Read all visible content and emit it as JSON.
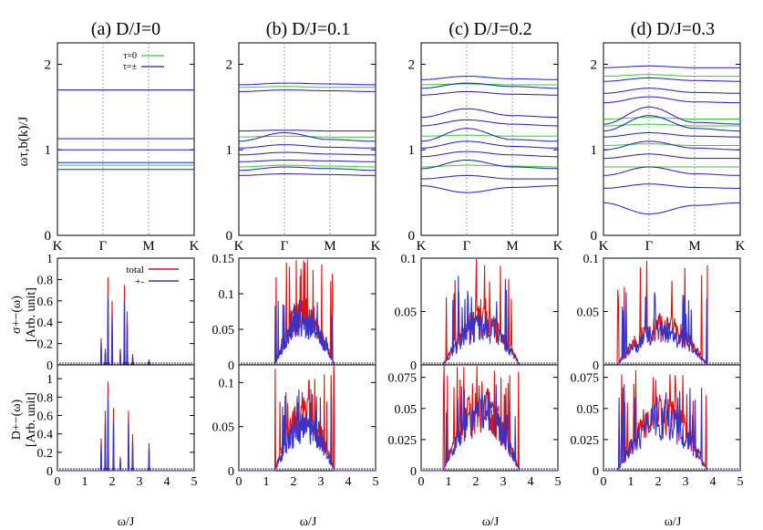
{
  "colors": {
    "tau0": "#33cc33",
    "taupm": "#1a1acc",
    "total": "#e01010",
    "pm": "#3333cc",
    "axis": "#000000",
    "guide": "#888888"
  },
  "labels": {
    "omega_ylabel": "ωτ,b(k)/J",
    "sigma_ylabel_1": "σ+−(ω)",
    "sigma_ylabel_2": "[Arb. unit]",
    "d_ylabel_1": "D+−(ω)",
    "d_ylabel_2": "[Arb. unit]",
    "xlabel": "ω/J",
    "legend_top": [
      "τ=0",
      "τ=±"
    ],
    "legend_mid": [
      "total",
      "+-"
    ]
  },
  "chart_data": [
    {
      "type": "line",
      "panel": "dispersion",
      "title": "(a) D/J=0",
      "x_ticks": [
        "K",
        "Γ",
        "M",
        "K"
      ],
      "ylim": [
        0,
        2.25
      ],
      "y_ticks": [
        "0",
        "1",
        "2"
      ],
      "series": [
        {
          "name": "τ=0",
          "bands": [
            [
              0.82,
              0.82,
              0.82,
              0.82
            ],
            [
              1.13,
              1.13,
              1.13,
              1.13
            ],
            [
              1.7,
              1.7,
              1.7,
              1.7
            ]
          ]
        },
        {
          "name": "τ=±",
          "bands": [
            [
              0.77,
              0.77,
              0.77,
              0.77
            ],
            [
              0.85,
              0.85,
              0.85,
              0.85
            ],
            [
              1.0,
              1.0,
              1.0,
              1.0
            ],
            [
              1.13,
              1.13,
              1.13,
              1.13
            ],
            [
              1.7,
              1.7,
              1.7,
              1.7
            ]
          ]
        }
      ]
    },
    {
      "type": "line",
      "panel": "dispersion",
      "title": "(b) D/J=0.1",
      "x_ticks": [
        "K",
        "Γ",
        "M",
        "K"
      ],
      "ylim": [
        0,
        2.25
      ],
      "y_ticks": [
        "0",
        "1",
        "2"
      ],
      "series": [
        {
          "name": "τ=0",
          "bands": [
            [
              0.8,
              0.82,
              0.81,
              0.8
            ],
            [
              1.15,
              1.16,
              1.15,
              1.15
            ],
            [
              1.73,
              1.74,
              1.73,
              1.73
            ]
          ]
        },
        {
          "name": "τ=±",
          "bands": [
            [
              0.7,
              0.72,
              0.71,
              0.7
            ],
            [
              0.76,
              0.8,
              0.78,
              0.76
            ],
            [
              0.86,
              0.88,
              0.87,
              0.86
            ],
            [
              0.94,
              0.97,
              0.95,
              0.94
            ],
            [
              1.02,
              1.06,
              1.03,
              1.02
            ],
            [
              1.1,
              1.2,
              1.12,
              1.1
            ],
            [
              1.22,
              1.23,
              1.22,
              1.22
            ],
            [
              1.68,
              1.7,
              1.69,
              1.68
            ],
            [
              1.76,
              1.78,
              1.77,
              1.76
            ]
          ]
        }
      ]
    },
    {
      "type": "line",
      "panel": "dispersion",
      "title": "(c) D/J=0.2",
      "x_ticks": [
        "K",
        "Γ",
        "M",
        "K"
      ],
      "ylim": [
        0,
        2.25
      ],
      "y_ticks": [
        "0",
        "1",
        "2"
      ],
      "series": [
        {
          "name": "τ=0",
          "bands": [
            [
              0.8,
              0.82,
              0.81,
              0.8
            ],
            [
              1.16,
              1.17,
              1.16,
              1.16
            ],
            [
              1.76,
              1.77,
              1.76,
              1.76
            ]
          ]
        },
        {
          "name": "τ=±",
          "bands": [
            [
              0.58,
              0.5,
              0.56,
              0.58
            ],
            [
              0.66,
              0.7,
              0.66,
              0.66
            ],
            [
              0.78,
              0.88,
              0.8,
              0.78
            ],
            [
              0.92,
              0.98,
              0.94,
              0.92
            ],
            [
              1.02,
              1.1,
              1.04,
              1.02
            ],
            [
              1.1,
              1.25,
              1.12,
              1.1
            ],
            [
              1.28,
              1.35,
              1.3,
              1.28
            ],
            [
              1.38,
              1.48,
              1.4,
              1.38
            ],
            [
              1.64,
              1.68,
              1.65,
              1.64
            ],
            [
              1.72,
              1.78,
              1.74,
              1.72
            ],
            [
              1.82,
              1.86,
              1.83,
              1.82
            ]
          ]
        }
      ]
    },
    {
      "type": "line",
      "panel": "dispersion",
      "title": "(d) D/J=0.3",
      "x_ticks": [
        "K",
        "Γ",
        "M",
        "K"
      ],
      "ylim": [
        0,
        2.25
      ],
      "y_ticks": [
        "0",
        "1",
        "2"
      ],
      "series": [
        {
          "name": "τ=0",
          "bands": [
            [
              0.8,
              0.8,
              0.8,
              0.8
            ],
            [
              1.05,
              1.07,
              1.05,
              1.05
            ],
            [
              1.28,
              1.3,
              1.28,
              1.28
            ],
            [
              1.36,
              1.38,
              1.36,
              1.36
            ],
            [
              1.86,
              1.88,
              1.86,
              1.86
            ]
          ]
        },
        {
          "name": "τ=±",
          "bands": [
            [
              0.38,
              0.25,
              0.35,
              0.38
            ],
            [
              0.55,
              0.6,
              0.56,
              0.55
            ],
            [
              0.7,
              0.8,
              0.72,
              0.7
            ],
            [
              0.9,
              0.95,
              0.9,
              0.9
            ],
            [
              1.0,
              1.1,
              1.02,
              1.0
            ],
            [
              1.15,
              1.2,
              1.16,
              1.15
            ],
            [
              1.22,
              1.4,
              1.25,
              1.22
            ],
            [
              1.3,
              1.5,
              1.32,
              1.3
            ],
            [
              1.55,
              1.62,
              1.56,
              1.55
            ],
            [
              1.66,
              1.72,
              1.67,
              1.66
            ],
            [
              1.8,
              1.84,
              1.81,
              1.8
            ],
            [
              1.96,
              1.98,
              1.96,
              1.96
            ]
          ]
        }
      ]
    },
    {
      "type": "line",
      "panel": "sigma",
      "xlim": [
        0,
        5
      ],
      "ylim": [
        0,
        1
      ],
      "y_ticks": [
        "0",
        "0.2",
        "0.4",
        "0.6",
        "0.8",
        "1"
      ],
      "series": [
        {
          "name": "total",
          "peaks": [
            [
              1.6,
              0.25
            ],
            [
              1.75,
              0.15
            ],
            [
              1.85,
              0.82
            ],
            [
              2.0,
              0.6
            ],
            [
              2.3,
              0.15
            ],
            [
              2.45,
              0.75
            ],
            [
              2.55,
              0.5
            ],
            [
              2.75,
              0.1
            ],
            [
              3.35,
              0.05
            ]
          ]
        },
        {
          "name": "+-",
          "peaks": [
            [
              1.6,
              0.2
            ],
            [
              1.75,
              0.12
            ],
            [
              1.85,
              0.65
            ],
            [
              2.0,
              0.45
            ],
            [
              2.3,
              0.12
            ],
            [
              2.45,
              0.6
            ],
            [
              2.55,
              0.4
            ],
            [
              2.75,
              0.08
            ],
            [
              3.35,
              0.04
            ]
          ]
        }
      ]
    },
    {
      "type": "line",
      "panel": "sigma",
      "xlim": [
        0,
        5
      ],
      "ylim": [
        0,
        0.15
      ],
      "y_ticks": [
        "0",
        "0.05",
        "0.1",
        "0.15"
      ],
      "series": [
        {
          "name": "total",
          "range": [
            1.3,
            3.5
          ],
          "peak": 0.15,
          "level": 0.07
        },
        {
          "name": "+-",
          "range": [
            1.3,
            3.5
          ],
          "peak": 0.1,
          "level": 0.06
        }
      ]
    },
    {
      "type": "line",
      "panel": "sigma",
      "xlim": [
        0,
        5
      ],
      "ylim": [
        0,
        0.1
      ],
      "y_ticks": [
        "0",
        "0.05",
        "0.1"
      ],
      "series": [
        {
          "name": "total",
          "range": [
            0.8,
            3.6
          ],
          "peak": 0.1,
          "level": 0.04
        },
        {
          "name": "+-",
          "range": [
            0.8,
            3.6
          ],
          "peak": 0.09,
          "level": 0.035
        }
      ]
    },
    {
      "type": "line",
      "panel": "sigma",
      "xlim": [
        0,
        5
      ],
      "ylim": [
        0,
        0.1
      ],
      "y_ticks": [
        "0",
        "0.05",
        "0.1"
      ],
      "series": [
        {
          "name": "total",
          "range": [
            0.5,
            3.8
          ],
          "peak": 0.1,
          "level": 0.035
        },
        {
          "name": "+-",
          "range": [
            0.5,
            3.8
          ],
          "peak": 0.07,
          "level": 0.03
        }
      ]
    },
    {
      "type": "line",
      "panel": "D",
      "xlim": [
        0,
        5
      ],
      "ylim": [
        0,
        1.15
      ],
      "y_ticks": [
        "0",
        "0.2",
        "0.4",
        "0.6",
        "0.8",
        "1"
      ],
      "series": [
        {
          "name": "total",
          "peaks": [
            [
              1.6,
              0.35
            ],
            [
              1.75,
              0.65
            ],
            [
              1.85,
              0.97
            ],
            [
              2.05,
              0.68
            ],
            [
              2.3,
              0.15
            ],
            [
              2.6,
              0.65
            ],
            [
              2.75,
              0.4
            ],
            [
              3.35,
              0.3
            ]
          ]
        },
        {
          "name": "+-",
          "peaks": [
            [
              1.6,
              0.28
            ],
            [
              1.75,
              0.52
            ],
            [
              1.85,
              0.8
            ],
            [
              2.05,
              0.55
            ],
            [
              2.3,
              0.12
            ],
            [
              2.6,
              0.52
            ],
            [
              2.75,
              0.32
            ],
            [
              3.35,
              0.25
            ]
          ]
        }
      ]
    },
    {
      "type": "line",
      "panel": "D",
      "xlim": [
        0,
        5
      ],
      "ylim": [
        0,
        0.12
      ],
      "y_ticks": [
        "0",
        "0.05",
        "0.1"
      ],
      "series": [
        {
          "name": "total",
          "range": [
            1.3,
            3.5
          ],
          "peak": 0.12,
          "level": 0.06
        },
        {
          "name": "+-",
          "range": [
            1.3,
            3.5
          ],
          "peak": 0.1,
          "level": 0.05
        }
      ]
    },
    {
      "type": "line",
      "panel": "D",
      "xlim": [
        0,
        5
      ],
      "ylim": [
        0,
        0.085
      ],
      "y_ticks": [
        "0",
        "0.025",
        "0.05",
        "0.075"
      ],
      "series": [
        {
          "name": "total",
          "range": [
            0.8,
            3.6
          ],
          "peak": 0.085,
          "level": 0.05
        },
        {
          "name": "+-",
          "range": [
            0.8,
            3.6
          ],
          "peak": 0.07,
          "level": 0.045
        }
      ]
    },
    {
      "type": "line",
      "panel": "D",
      "xlim": [
        0,
        5
      ],
      "ylim": [
        0,
        0.085
      ],
      "y_ticks": [
        "0",
        "0.025",
        "0.05",
        "0.075"
      ],
      "series": [
        {
          "name": "total",
          "range": [
            0.5,
            3.8
          ],
          "peak": 0.085,
          "level": 0.045
        },
        {
          "name": "+-",
          "range": [
            0.5,
            3.8
          ],
          "peak": 0.07,
          "level": 0.04
        }
      ]
    }
  ],
  "x_ticks_bottom": [
    "0",
    "1",
    "2",
    "3",
    "4",
    "5"
  ]
}
